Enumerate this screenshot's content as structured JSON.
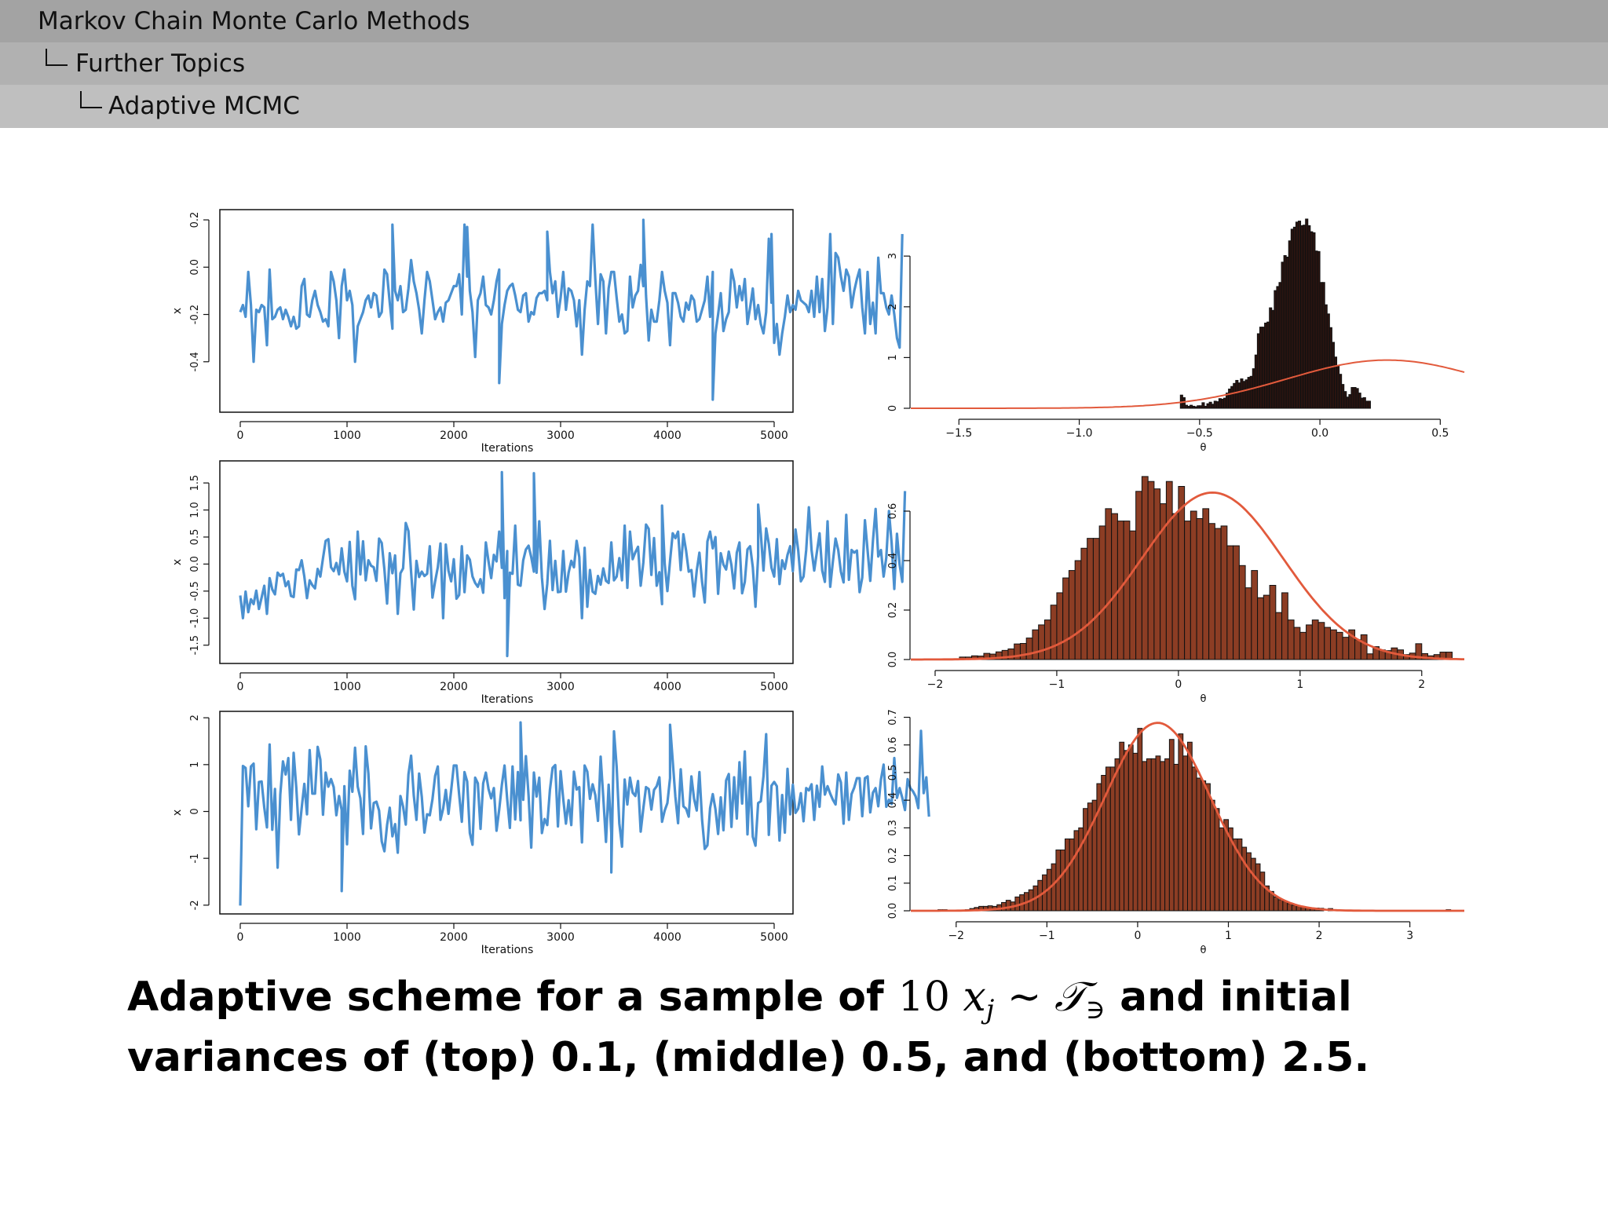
{
  "header": {
    "section": "Markov Chain Monte Carlo Methods",
    "subsection": "Further Topics",
    "subsubsection": "Adaptive MCMC"
  },
  "caption": {
    "part1": "Adaptive scheme for a sample of",
    "math_n": "10",
    "math_x": "x",
    "math_j": "j",
    "math_sim": "∼",
    "math_T": "𝒯",
    "math_sub": "∋",
    "part2": "and initial",
    "line2": "variances of (top) 0.1, (middle) 0.5, and (bottom) 2.5."
  },
  "colors": {
    "trace": "#4a90d0",
    "hist_top": "#2a1410",
    "hist": "#8c3d24",
    "density": "#e25a3c"
  },
  "chart_data": [
    {
      "type": "line",
      "panel": "top-trace",
      "xlabel": "Iterations",
      "ylabel": "x",
      "xlim": [
        0,
        5000
      ],
      "ylim": [
        -0.6,
        0.23
      ],
      "xticks": [
        "0",
        "1000",
        "2000",
        "3000",
        "4000",
        "5000"
      ],
      "yticks": [
        "-0.4",
        "-0.2",
        "0.0",
        "0.2"
      ],
      "x_step": 25,
      "y": [
        -0.19,
        -0.16,
        -0.21,
        -0.02,
        -0.16,
        -0.4,
        -0.18,
        -0.19,
        -0.16,
        -0.17,
        -0.33,
        -0.01,
        -0.22,
        -0.21,
        -0.18,
        -0.17,
        -0.22,
        -0.18,
        -0.21,
        -0.25,
        -0.21,
        -0.26,
        -0.25,
        -0.08,
        -0.05,
        -0.2,
        -0.21,
        -0.14,
        -0.1,
        -0.16,
        -0.19,
        -0.23,
        -0.22,
        -0.25,
        -0.02,
        -0.06,
        -0.14,
        -0.3,
        -0.08,
        -0.01,
        -0.14,
        -0.1,
        -0.16,
        -0.4,
        -0.25,
        -0.22,
        -0.19,
        -0.14,
        -0.12,
        -0.17,
        -0.11,
        -0.12,
        -0.21,
        -0.19,
        -0.01,
        -0.03,
        -0.15,
        -0.26,
        -0.1,
        -0.14,
        -0.08,
        -0.19,
        -0.18,
        -0.09,
        0.03,
        -0.06,
        -0.11,
        -0.18,
        -0.28,
        -0.14,
        -0.02,
        -0.06,
        -0.14,
        -0.22,
        -0.19,
        -0.17,
        -0.23,
        -0.15,
        -0.14,
        -0.11,
        -0.08,
        -0.08,
        -0.03,
        -0.2,
        0.18,
        -0.04,
        -0.1,
        -0.19,
        -0.38,
        -0.14,
        -0.11,
        -0.04,
        -0.16,
        -0.17,
        -0.2,
        -0.14,
        -0.06,
        -0.01,
        -0.24,
        -0.16,
        -0.1,
        -0.08,
        -0.07,
        -0.12,
        -0.18,
        -0.19,
        -0.12,
        -0.11,
        -0.23,
        -0.19,
        -0.2,
        -0.13,
        -0.11,
        -0.11,
        -0.1,
        -0.14,
        -0.02,
        -0.11,
        -0.06,
        -0.21,
        -0.13,
        -0.02,
        -0.18,
        -0.09,
        -0.1,
        -0.14,
        -0.25,
        -0.14,
        -0.37,
        -0.18,
        -0.06,
        -0.08,
        0.18,
        -0.05,
        -0.24,
        -0.03,
        -0.06,
        -0.28,
        -0.09,
        -0.02,
        -0.02,
        -0.13,
        -0.23,
        -0.2,
        -0.28,
        -0.27,
        -0.04,
        -0.17,
        -0.12,
        -0.1,
        0.01,
        -0.08,
        -0.12,
        -0.31,
        -0.18,
        -0.23,
        -0.23,
        -0.14,
        -0.02,
        -0.1,
        -0.15,
        -0.33,
        -0.11,
        -0.11,
        -0.15,
        -0.21,
        -0.23,
        -0.15,
        -0.18,
        -0.12,
        -0.14,
        -0.23,
        -0.22,
        -0.18,
        -0.14,
        -0.04,
        -0.21,
        -0.02,
        -0.28,
        -0.2,
        -0.11,
        -0.27,
        -0.22,
        -0.19,
        -0.01,
        -0.06,
        -0.17,
        -0.08,
        -0.14,
        -0.05,
        -0.24,
        -0.17,
        -0.09,
        -0.22,
        -0.16,
        -0.24,
        -0.28,
        -0.19,
        0.12,
        -0.15,
        -0.32,
        -0.24,
        -0.37,
        -0.28,
        -0.21,
        -0.12,
        -0.19,
        -0.16,
        -0.18,
        -0.1,
        -0.14,
        -0.15,
        -0.16,
        -0.19,
        -0.1,
        -0.21,
        -0.04,
        -0.19,
        -0.05,
        -0.27,
        -0.17,
        0.14,
        -0.24,
        0.06,
        0.04,
        -0.04,
        -0.1,
        -0.01,
        -0.04,
        -0.17,
        -0.1,
        -0.05,
        -0.01,
        -0.17,
        -0.28,
        -0.02,
        -0.24,
        -0.15,
        -0.28,
        0.04,
        -0.11,
        -0.11,
        -0.17,
        -0.2,
        -0.12,
        -0.2,
        -0.3,
        -0.34,
        0.14
      ],
      "highlights": [
        {
          "iter": 1425,
          "y": 0.18
        },
        {
          "iter": 2125,
          "y": 0.17
        },
        {
          "iter": 2425,
          "y": -0.49
        },
        {
          "iter": 2875,
          "y": 0.15
        },
        {
          "iter": 3775,
          "y": 0.2
        },
        {
          "iter": 4425,
          "y": -0.56
        },
        {
          "iter": 4975,
          "y": 0.14
        }
      ]
    },
    {
      "type": "bar",
      "panel": "top-histogram",
      "xlabel": "θ",
      "xlim": [
        -1.7,
        0.6
      ],
      "ylim": [
        0,
        3.9
      ],
      "xticks": [
        "−1.5",
        "−1.0",
        "−0.5",
        "0.0",
        "0.5"
      ],
      "yticks": [
        "0",
        "1",
        "2",
        "3"
      ],
      "bin_start": -0.58,
      "bin_width": 0.01,
      "heights": [
        0.26,
        0.21,
        0.06,
        0.04,
        0.06,
        0.04,
        0.03,
        0.05,
        0.05,
        0.11,
        0.04,
        0.09,
        0.12,
        0.08,
        0.14,
        0.13,
        0.19,
        0.18,
        0.2,
        0.3,
        0.38,
        0.43,
        0.49,
        0.55,
        0.5,
        0.58,
        0.53,
        0.56,
        0.61,
        0.63,
        0.78,
        1.05,
        1.47,
        1.6,
        1.6,
        1.68,
        1.7,
        1.98,
        1.93,
        2.32,
        2.4,
        2.48,
        2.88,
        3.01,
        2.98,
        3.3,
        3.53,
        3.57,
        3.67,
        3.69,
        3.6,
        3.61,
        3.73,
        3.6,
        3.48,
        3.46,
        3.1,
        3.09,
        2.48,
        2.48,
        2.04,
        1.86,
        1.59,
        1.3,
        1.01,
        0.84,
        0.67,
        0.47,
        0.33,
        0.22,
        0.27,
        0.41,
        0.41,
        0.39,
        0.3,
        0.2,
        0.21,
        0.14,
        0.14
      ],
      "density": {
        "mean": 0.28,
        "sd": 0.42
      }
    },
    {
      "type": "line",
      "panel": "middle-trace",
      "xlabel": "Iterations",
      "ylabel": "x",
      "xlim": [
        0,
        5000
      ],
      "ylim": [
        -1.78,
        1.85
      ],
      "xticks": [
        "0",
        "1000",
        "2000",
        "3000",
        "4000",
        "5000"
      ],
      "yticks": [
        "-1.5",
        "-1.0",
        "-0.5",
        "0.0",
        "0.5",
        "1.0",
        "1.5"
      ],
      "x_step": 25,
      "y": [
        -0.58,
        -1.0,
        -0.51,
        -0.89,
        -0.65,
        -0.74,
        -0.49,
        -0.83,
        -0.62,
        -0.4,
        -0.92,
        -0.26,
        -0.47,
        -0.56,
        -0.16,
        -0.22,
        -0.18,
        -0.41,
        -0.32,
        -0.59,
        -0.61,
        -0.1,
        -0.11,
        0.07,
        -0.23,
        -0.63,
        -0.3,
        -0.39,
        -0.45,
        -0.09,
        -0.23,
        0.11,
        0.43,
        0.46,
        -0.06,
        -0.13,
        0.02,
        -0.19,
        0.29,
        -0.14,
        -0.32,
        0.41,
        -0.4,
        -0.65,
        0.6,
        -0.19,
        0.42,
        -0.3,
        0.07,
        -0.03,
        -0.06,
        -0.31,
        0.47,
        0.39,
        -0.1,
        -0.73,
        0.2,
        -0.17,
        0.16,
        -0.92,
        -0.17,
        -0.08,
        0.76,
        0.61,
        -0.15,
        -0.84,
        0.06,
        -0.24,
        -0.14,
        -0.22,
        -0.18,
        0.33,
        -0.62,
        -0.32,
        -0.06,
        0.38,
        -1.0,
        0.36,
        -0.12,
        -0.32,
        0.09,
        -0.64,
        -0.57,
        0.33,
        -0.52,
        0.16,
        0.08,
        -0.23,
        -0.35,
        -0.42,
        -0.28,
        -0.53,
        0.4,
        0.05,
        -0.26,
        0.17,
        0.05,
        0.6,
        -0.07,
        -0.63,
        0.24,
        -0.16,
        -0.18,
        0.71,
        -0.38,
        -0.4,
        0.07,
        0.27,
        0.34,
        0.13,
        -0.14,
        -0.16,
        0.79,
        -0.25,
        -0.83,
        -0.37,
        0.43,
        -0.48,
        0.06,
        -0.52,
        -0.51,
        0.24,
        -0.51,
        -0.16,
        0.06,
        -0.06,
        0.43,
        0.13,
        -1.0,
        0.3,
        -0.79,
        -0.11,
        -0.51,
        -0.55,
        -0.22,
        -0.38,
        -0.08,
        -0.31,
        -0.35,
        0.4,
        -0.3,
        -0.23,
        0.11,
        -0.3,
        0.71,
        -0.44,
        0.6,
        0.09,
        0.22,
        0.32,
        -0.4,
        0.03,
        0.73,
        0.65,
        -0.2,
        0.48,
        -0.4,
        -0.15,
        -0.74,
        0.0,
        -0.5,
        0.06,
        0.57,
        0.48,
        0.6,
        -0.11,
        0.55,
        0.25,
        -0.14,
        -0.11,
        -0.6,
        -0.12,
        0.21,
        -0.33,
        -0.71,
        0.42,
        0.6,
        0.29,
        0.5,
        -0.55,
        0.2,
        -0.01,
        -0.1,
        0.23,
        -0.02,
        -0.45,
        0.21,
        0.4,
        -0.54,
        -0.33,
        0.27,
        0.33,
        -0.06,
        -0.79,
        0.14,
        0.56,
        -0.12,
        0.66,
        0.37,
        -0.07,
        -0.23,
        0.46,
        -0.37,
        0.07,
        -0.09,
        0.17,
        0.33,
        -0.13,
        0.64,
        0.26,
        -0.32,
        -0.23,
        0.26,
        1.05,
        0.26,
        -0.12,
        0.22,
        0.57,
        -0.12,
        -0.33,
        0.79,
        -0.42,
        0.05,
        0.47,
        0.26,
        -0.14,
        -0.34,
        0.91,
        -0.29,
        0.26,
        0.21,
        0.25,
        -0.52,
        -0.25,
        0.81,
        0.25,
        -0.31,
        0.43,
        1.02,
        0.14,
        0.26,
        -0.23,
        0.12,
        0.98,
        0.39,
        -0.46,
        0.56,
        -0.01,
        -0.33,
        1.35
      ],
      "highlights": [
        {
          "iter": 2450,
          "y": 1.7
        },
        {
          "iter": 2500,
          "y": -1.7
        },
        {
          "iter": 2750,
          "y": 1.68
        },
        {
          "iter": 3950,
          "y": 1.08
        },
        {
          "iter": 4850,
          "y": 1.1
        }
      ]
    },
    {
      "type": "bar",
      "panel": "middle-histogram",
      "xlabel": "θ",
      "xlim": [
        -2.2,
        2.35
      ],
      "ylim": [
        0,
        0.8
      ],
      "xticks": [
        "−2",
        "−1",
        "0",
        "1",
        "2"
      ],
      "yticks": [
        "0.0",
        "0.2",
        "0.4",
        "0.6"
      ],
      "bin_start": -1.8,
      "bin_width": 0.05,
      "heights": [
        0.01,
        0.01,
        0.015,
        0.014,
        0.025,
        0.022,
        0.031,
        0.037,
        0.043,
        0.063,
        0.065,
        0.087,
        0.12,
        0.14,
        0.16,
        0.22,
        0.27,
        0.33,
        0.36,
        0.4,
        0.45,
        0.49,
        0.49,
        0.54,
        0.61,
        0.59,
        0.56,
        0.56,
        0.52,
        0.68,
        0.74,
        0.72,
        0.69,
        0.63,
        0.72,
        0.59,
        0.7,
        0.56,
        0.6,
        0.57,
        0.61,
        0.55,
        0.53,
        0.54,
        0.46,
        0.46,
        0.38,
        0.29,
        0.36,
        0.25,
        0.26,
        0.3,
        0.19,
        0.27,
        0.16,
        0.13,
        0.11,
        0.14,
        0.16,
        0.15,
        0.13,
        0.12,
        0.11,
        0.09,
        0.12,
        0.08,
        0.1,
        0.023,
        0.052,
        0.039,
        0.036,
        0.047,
        0.039,
        0.02,
        0.026,
        0.064,
        0.024,
        0.015,
        0.02,
        0.03,
        0.03
      ],
      "density": {
        "mean": 0.28,
        "sd": 0.58
      }
    },
    {
      "type": "line",
      "panel": "bottom-trace",
      "xlabel": "Iterations",
      "ylabel": "x",
      "xlim": [
        0,
        5000
      ],
      "ylim": [
        -2.12,
        2.07
      ],
      "xticks": [
        "0",
        "1000",
        "2000",
        "3000",
        "4000",
        "5000"
      ],
      "yticks": [
        "-2",
        "-1",
        "0",
        "1",
        "2"
      ],
      "x_step": 25,
      "y": [
        -2.01,
        0.97,
        0.93,
        0.11,
        0.96,
        1.02,
        -0.38,
        0.63,
        0.64,
        0.08,
        -0.34,
        1.43,
        -0.39,
        0.48,
        -1.2,
        0.36,
        1.07,
        0.79,
        1.14,
        -0.18,
        1.25,
        0.5,
        -0.49,
        0.07,
        0.59,
        -0.06,
        1.31,
        0.38,
        0.38,
        1.38,
        1.11,
        -0.07,
        0.83,
        0.53,
        0.69,
        0.52,
        -0.08,
        0.33,
        0.03,
        0.54,
        -0.7,
        0.87,
        0.42,
        1.36,
        0.53,
        0.28,
        -0.48,
        1.39,
        0.81,
        -0.36,
        0.18,
        0.21,
        0.02,
        -0.64,
        -0.85,
        -0.29,
        0.08,
        -0.53,
        -0.27,
        -0.88,
        0.33,
        0.1,
        -0.28,
        0.79,
        1.19,
        0.34,
        -0.18,
        0.81,
        0.31,
        -0.45,
        -0.06,
        -0.08,
        0.26,
        0.76,
        0.96,
        -0.18,
        0.06,
        0.46,
        -0.05,
        0.45,
        0.98,
        0.98,
        0.36,
        -0.22,
        0.84,
        0.64,
        -0.46,
        -0.71,
        0.72,
        0.6,
        -0.37,
        0.6,
        0.83,
        0.48,
        0.28,
        0.5,
        -0.41,
        0.04,
        0.57,
        0.98,
        0.26,
        -0.35,
        0.96,
        -0.17,
        0.84,
        -0.19,
        0.25,
        1.18,
        0.34,
        -0.77,
        0.83,
        0.32,
        0.72,
        -0.46,
        -0.16,
        -0.29,
        0.46,
        0.93,
        0.99,
        -0.32,
        0.86,
        0.26,
        -0.26,
        0.24,
        -0.29,
        0.85,
        0.47,
        0.52,
        -0.66,
        0.98,
        0.85,
        0.27,
        0.58,
        0.35,
        -0.2,
        1.17,
        0.29,
        -0.65,
        0.57,
        -0.46,
        1.71,
        0.95,
        -0.26,
        -0.75,
        0.68,
        0.15,
        0.72,
        0.4,
        0.33,
        0.65,
        -0.43,
        0.07,
        0.52,
        0.48,
        0.04,
        0.46,
        0.54,
        0.73,
        -0.22,
        0.02,
        0.18,
        0.71,
        1.08,
        0.31,
        -0.25,
        0.9,
        0.11,
        0.06,
        -0.11,
        0.75,
        0.27,
        0.02,
        0.84,
        -0.18,
        -0.8,
        -0.72,
        0.07,
        0.37,
        0.05,
        -0.48,
        0.3,
        -0.4,
        0.66,
        0.8,
        -0.33,
        0.73,
        -0.15,
        1.05,
        0.17,
        1.28,
        -0.49,
        0.73,
        -0.54,
        -0.73,
        0.18,
        0.22,
        0.75,
        1.65,
        -0.5,
        0.55,
        0.63,
        0.54,
        -0.62,
        0.35,
        -0.45,
        0.91,
        -0.06,
        0.57,
        -0.03,
        0.06,
        0.39,
        -0.21,
        0.5,
        0.45,
        0.58,
        -0.18,
        0.55,
        0.1,
        0.96,
        0.36,
        0.54,
        0.38,
        0.25,
        0.15,
        0.79,
        0.62,
        -0.26,
        0.83,
        -0.18,
        0.37,
        0.51,
        0.71,
        0.71,
        -0.1,
        0.71,
        0.75,
        -0.02,
        0.4,
        0.5,
        0.11,
        0.68,
        1.0,
        0.1,
        0.25,
        0.16,
        1.14,
        0.29,
        0.5,
        0.29,
        0.03,
        0.69,
        0.5,
        0.43,
        0.32,
        0.07,
        1.72,
        0.39,
        0.73,
        -0.11
      ],
      "highlights": [
        {
          "iter": 950,
          "y": -1.7
        },
        {
          "iter": 2625,
          "y": 1.9
        },
        {
          "iter": 3475,
          "y": -1.3
        },
        {
          "iter": 4025,
          "y": 1.85
        }
      ]
    },
    {
      "type": "bar",
      "panel": "bottom-histogram",
      "xlabel": "θ",
      "xlim": [
        -2.5,
        3.6
      ],
      "ylim": [
        0,
        0.73
      ],
      "xticks": [
        "−2",
        "−1",
        "0",
        "1",
        "2",
        "3"
      ],
      "yticks": [
        "0.0",
        "0.1",
        "0.2",
        "0.3",
        "0.4",
        "0.5",
        "0.6",
        "0.7"
      ],
      "bin_start": -2.2,
      "bin_width": 0.05,
      "heights": [
        0.004,
        0.004,
        0,
        0,
        0,
        0,
        0.004,
        0.008,
        0.012,
        0.016,
        0.016,
        0.018,
        0.016,
        0.022,
        0.03,
        0.038,
        0.032,
        0.05,
        0.058,
        0.066,
        0.076,
        0.09,
        0.11,
        0.13,
        0.15,
        0.17,
        0.22,
        0.22,
        0.26,
        0.26,
        0.29,
        0.3,
        0.37,
        0.39,
        0.4,
        0.46,
        0.49,
        0.52,
        0.52,
        0.55,
        0.61,
        0.58,
        0.6,
        0.57,
        0.66,
        0.54,
        0.55,
        0.55,
        0.56,
        0.54,
        0.55,
        0.62,
        0.53,
        0.64,
        0.56,
        0.61,
        0.52,
        0.48,
        0.47,
        0.46,
        0.4,
        0.37,
        0.3,
        0.33,
        0.3,
        0.26,
        0.26,
        0.23,
        0.21,
        0.19,
        0.17,
        0.14,
        0.09,
        0.07,
        0.05,
        0.04,
        0.035,
        0.026,
        0.02,
        0.017,
        0.014,
        0.01,
        0.008,
        0.01,
        0.009,
        0,
        0.008,
        0,
        0,
        0,
        0,
        0,
        0,
        0,
        0,
        0,
        0,
        0,
        0,
        0,
        0,
        0,
        0,
        0,
        0,
        0,
        0,
        0,
        0,
        0,
        0,
        0,
        0.004
      ],
      "density": {
        "mean": 0.22,
        "sd": 0.58
      }
    }
  ]
}
